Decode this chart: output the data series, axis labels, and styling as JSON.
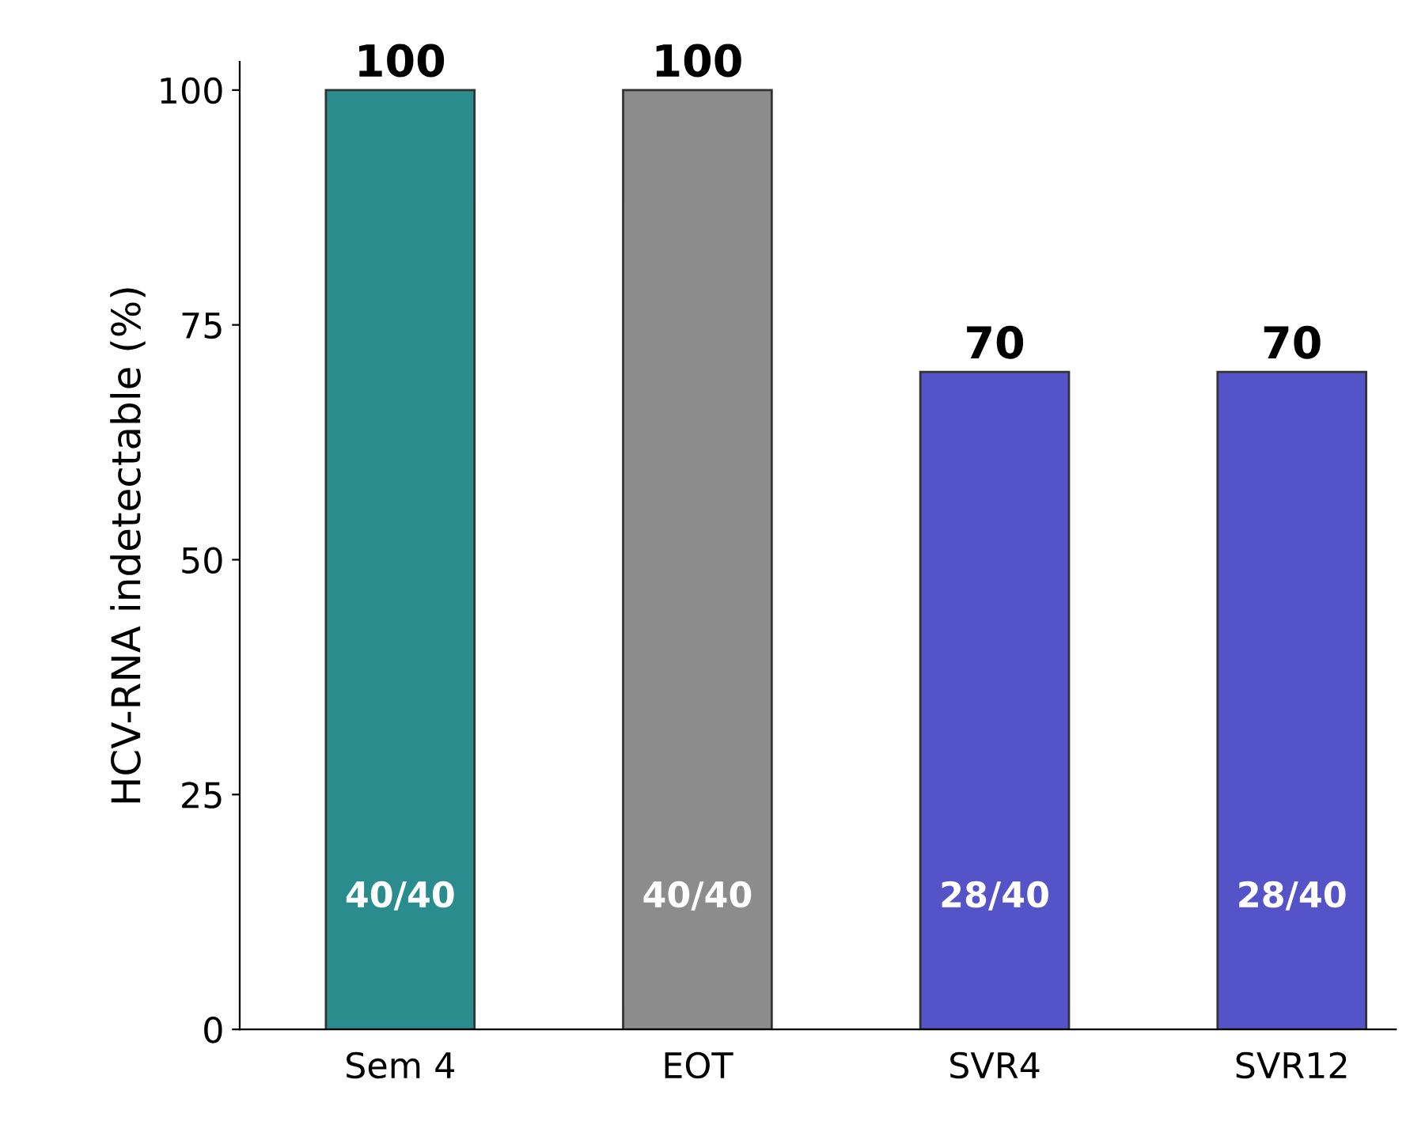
{
  "chart_data": {
    "type": "bar",
    "ylabel": "HCV-RNA indetectable (%)",
    "categories": [
      "Sem 4",
      "EOT",
      "SVR4",
      "SVR12"
    ],
    "values": [
      100,
      100,
      70,
      70
    ],
    "colors": [
      "#2a8c8c",
      "#8c8c8c",
      "#5454c8",
      "#5454c8"
    ],
    "ylim": [
      0,
      103
    ],
    "yticks": [
      0,
      25,
      50,
      75,
      100
    ],
    "grid": false,
    "data_labels": true,
    "annotations": [
      "40/40",
      "40/40",
      "28/40",
      "28/40"
    ]
  }
}
